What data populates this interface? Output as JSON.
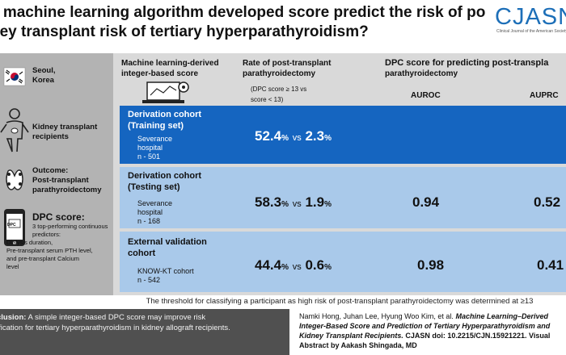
{
  "title": {
    "line1": "a machine learning algorithm developed score predict the risk of post",
    "line2": "ney transplant risk of tertiary hyperparathyroidism?"
  },
  "logo": {
    "text": "CJASN",
    "subtitle": "Clinical Journal of the American Society"
  },
  "sidebar": {
    "location": {
      "line1": "Seoul,",
      "line2": "Korea"
    },
    "recipients": {
      "line1": "Kidney transplant",
      "line2": "recipients"
    },
    "outcome": {
      "line1": "Outcome:",
      "line2": "Post-transplant",
      "line3": "parathyroidectomy"
    },
    "dpc": {
      "heading": "DPC score:",
      "line1": "3 top-performing continuous",
      "line2": "predictors:",
      "line3": "Dialysis duration,",
      "line4": "Pre-transplant serum PTH level,",
      "line5": "and pre-transplant Calcium",
      "line6": "level",
      "icon_text": "DPC"
    }
  },
  "headers": {
    "score": {
      "line1": "Machine learning-derived",
      "line2": "integer-based score"
    },
    "rate": {
      "line1": "Rate of post-transplant",
      "line2": "parathyroidectomy",
      "note1": "(DPC score ≥ 13 vs",
      "note2": "score < 13)"
    },
    "dpc": {
      "line1": "DPC score for predicting post-transpla",
      "line2": "parathyroidectomy"
    },
    "auroc": "AUROC",
    "auprc": "AUPRC"
  },
  "rows": [
    {
      "cohort1": "Derivation cohort",
      "cohort2": "(Training set)",
      "site1": "Severance",
      "site2": "hospital",
      "n": "n - 501",
      "rate_high": "52.4",
      "rate_low": "2.3",
      "auroc": "",
      "auprc": ""
    },
    {
      "cohort1": "Derivation cohort",
      "cohort2": "(Testing set)",
      "site1": "Severance",
      "site2": "hospital",
      "n": "n - 168",
      "rate_high": "58.3",
      "rate_low": "1.9",
      "auroc": "0.94",
      "auprc": "0.52"
    },
    {
      "cohort1": "External validation",
      "cohort2": "cohort",
      "site1": "KNOW-KT cohort",
      "site2": "",
      "n": "n - 542",
      "rate_high": "44.4",
      "rate_low": "0.6",
      "auroc": "0.98",
      "auprc": "0.41"
    }
  ],
  "labels": {
    "pct": "%",
    "vs": "vs"
  },
  "threshold": "The threshold for classifying a participant as high risk of post-transplant parathyroidectomy was determined at ≥13",
  "conclusion": {
    "label": "clusion:",
    "line1": " A simple integer-based DPC score may improve risk",
    "line2": "ification for tertiary hyperparathyroidism in kidney allograft recipients."
  },
  "citation": {
    "line1": "Namki Hong, Juhan Lee, Hyung Woo Kim, et al.",
    "line1_title": "Machine Learning–Derived",
    "line2": "Integer-Based Score and Prediction of Tertiary Hyperparathyroidism and",
    "line3": "Kidney Transplant Recipients.",
    "line3_rest": "CJASN doi: 10.2215/CJN.15921221. Visual",
    "line4": "Abstract by Aakash Shingada, MD"
  },
  "colors": {
    "row_highlight": "#1565c0",
    "row_light": "#a9c9ea",
    "sidebar": "#b3b3b3",
    "panel": "#d9d9d9",
    "brand": "#1d6fb8",
    "footer": "#505050"
  }
}
